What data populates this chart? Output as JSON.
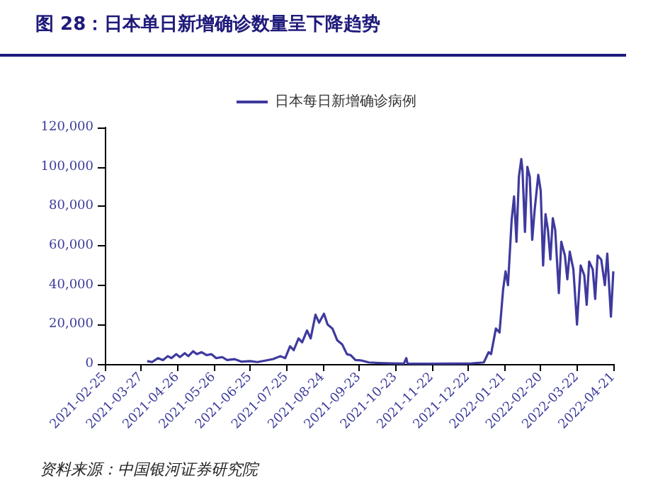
{
  "chart_data": {
    "type": "line",
    "title": "图 28：日本单日新增确诊数量呈下降趋势",
    "annotations": [
      "资料来源：中国银河证券研究院"
    ],
    "legend": "top",
    "grid": false,
    "marker": "none",
    "line_style": "solid",
    "xlim": [
      "2021-02-25",
      "2022-04-21"
    ],
    "xticks": [
      "2021-02-25",
      "2021-03-27",
      "2021-04-26",
      "2021-05-26",
      "2021-06-25",
      "2021-07-25",
      "2021-08-24",
      "2021-09-23",
      "2021-10-23",
      "2021-11-22",
      "2021-12-22",
      "2022-01-21",
      "2022-02-20",
      "2022-03-22",
      "2022-04-21"
    ],
    "ylim": [
      0,
      120000
    ],
    "yticks": [
      0,
      {
        "value": 20000,
        "label": "20,000"
      },
      {
        "value": 40000,
        "label": "40,000"
      },
      {
        "value": 60000,
        "label": "60,000"
      },
      {
        "value": 80000,
        "label": "80,000"
      },
      {
        "value": 100000,
        "label": "100,000"
      },
      {
        "value": 120000,
        "label": "120,000"
      }
    ],
    "x": [
      "2021-04-01",
      "2021-04-05",
      "2021-04-10",
      "2021-04-14",
      "2021-04-18",
      "2021-04-21",
      "2021-04-25",
      "2021-04-28",
      "2021-05-02",
      "2021-05-05",
      "2021-05-09",
      "2021-05-12",
      "2021-05-16",
      "2021-05-20",
      "2021-05-24",
      "2021-05-28",
      "2021-06-02",
      "2021-06-06",
      "2021-06-12",
      "2021-06-18",
      "2021-06-25",
      "2021-07-01",
      "2021-07-08",
      "2021-07-14",
      "2021-07-20",
      "2021-07-24",
      "2021-07-28",
      "2021-07-31",
      "2021-08-04",
      "2021-08-07",
      "2021-08-11",
      "2021-08-14",
      "2021-08-18",
      "2021-08-21",
      "2021-08-25",
      "2021-08-28",
      "2021-09-01",
      "2021-09-05",
      "2021-09-09",
      "2021-09-13",
      "2021-09-16",
      "2021-09-20",
      "2021-09-25",
      "2021-10-01",
      "2021-10-10",
      "2021-10-20",
      "2021-10-30",
      "2021-11-01",
      "2021-11-02",
      "2021-11-20",
      "2021-12-10",
      "2021-12-25",
      "2022-01-04",
      "2022-01-08",
      "2022-01-10",
      "2022-01-14",
      "2022-01-17",
      "2022-01-20",
      "2022-01-22",
      "2022-01-24",
      "2022-01-27",
      "2022-01-29",
      "2022-01-31",
      "2022-02-02",
      "2022-02-04",
      "2022-02-05",
      "2022-02-07",
      "2022-02-09",
      "2022-02-11",
      "2022-02-13",
      "2022-02-15",
      "2022-02-18",
      "2022-02-20",
      "2022-02-22",
      "2022-02-24",
      "2022-02-26",
      "2022-02-28",
      "2022-03-02",
      "2022-03-04",
      "2022-03-07",
      "2022-03-09",
      "2022-03-12",
      "2022-03-14",
      "2022-03-16",
      "2022-03-19",
      "2022-03-22",
      "2022-03-25",
      "2022-03-28",
      "2022-03-30",
      "2022-04-01",
      "2022-04-04",
      "2022-04-06",
      "2022-04-08",
      "2022-04-11",
      "2022-04-14",
      "2022-04-16",
      "2022-04-19",
      "2022-04-21"
    ],
    "series": [
      {
        "name": "日本每日新增确诊病例",
        "color": "#3f3a9e",
        "values": [
          1500,
          1000,
          3000,
          2000,
          4000,
          3000,
          5000,
          3500,
          5500,
          4000,
          6500,
          5000,
          6000,
          4500,
          5000,
          3000,
          3500,
          2000,
          2500,
          1200,
          1500,
          1000,
          1800,
          2500,
          4000,
          3000,
          9000,
          7000,
          13000,
          11000,
          17000,
          13000,
          25000,
          21000,
          25500,
          20000,
          18000,
          12000,
          10000,
          5000,
          4500,
          2000,
          1800,
          800,
          500,
          300,
          200,
          3000,
          200,
          150,
          200,
          300,
          800,
          6000,
          5000,
          18000,
          16000,
          38000,
          47000,
          40000,
          73000,
          85000,
          62000,
          95000,
          104000,
          98000,
          67000,
          100000,
          95000,
          63000,
          78000,
          96000,
          88000,
          50000,
          76000,
          68000,
          53000,
          74000,
          68000,
          36000,
          62000,
          55000,
          43000,
          57000,
          48000,
          20000,
          50000,
          45000,
          30000,
          52000,
          48000,
          33000,
          55000,
          53000,
          40000,
          56000,
          24000,
          47000
        ]
      }
    ]
  }
}
